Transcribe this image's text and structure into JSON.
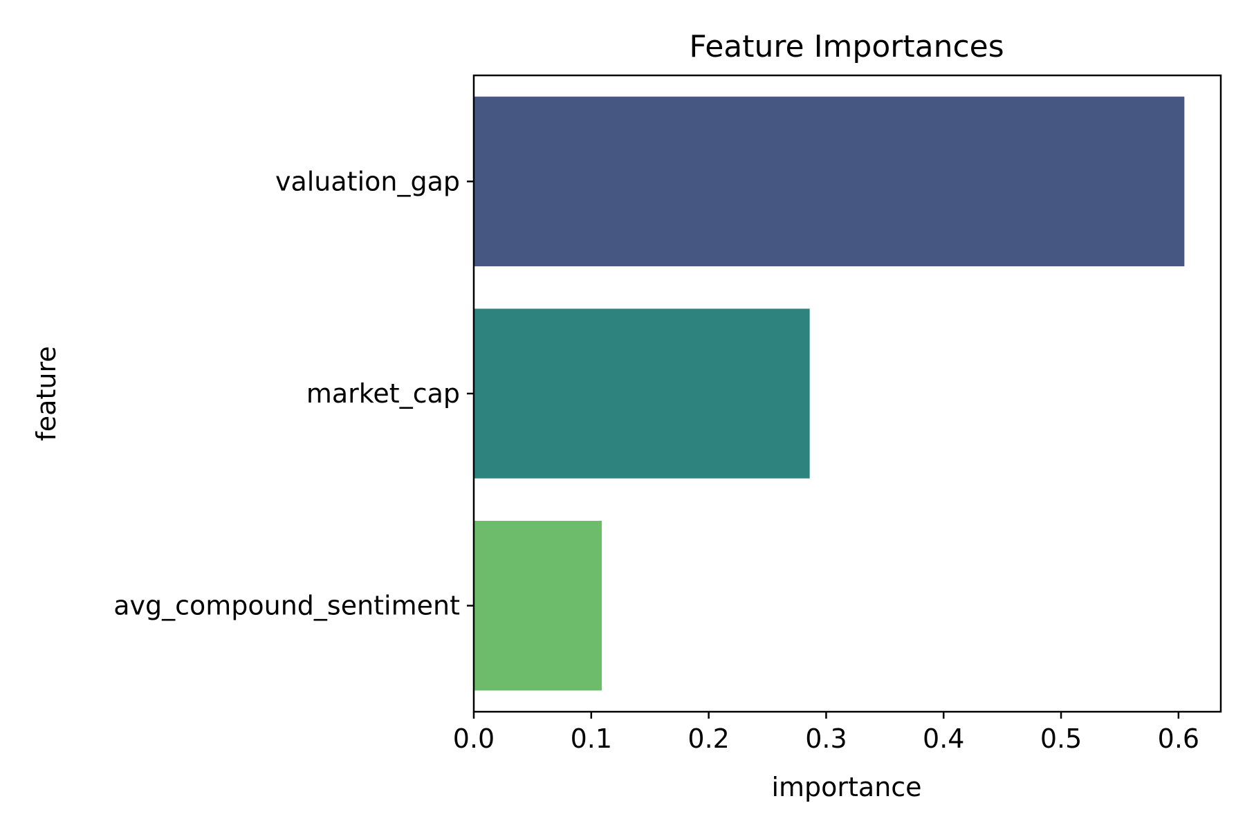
{
  "chart_data": {
    "type": "bar",
    "orientation": "horizontal",
    "title": "Feature Importances",
    "xlabel": "importance",
    "ylabel": "feature",
    "categories": [
      "valuation_gap",
      "market_cap",
      "avg_compound_sentiment"
    ],
    "values": [
      0.605,
      0.286,
      0.109
    ],
    "colors": [
      "#465881",
      "#2e837e",
      "#6cbc6c"
    ],
    "xlim": [
      0.0,
      0.636
    ],
    "xticks": [
      "0.0",
      "0.1",
      "0.2",
      "0.3",
      "0.4",
      "0.5",
      "0.6"
    ],
    "grid": false,
    "legend": null
  }
}
